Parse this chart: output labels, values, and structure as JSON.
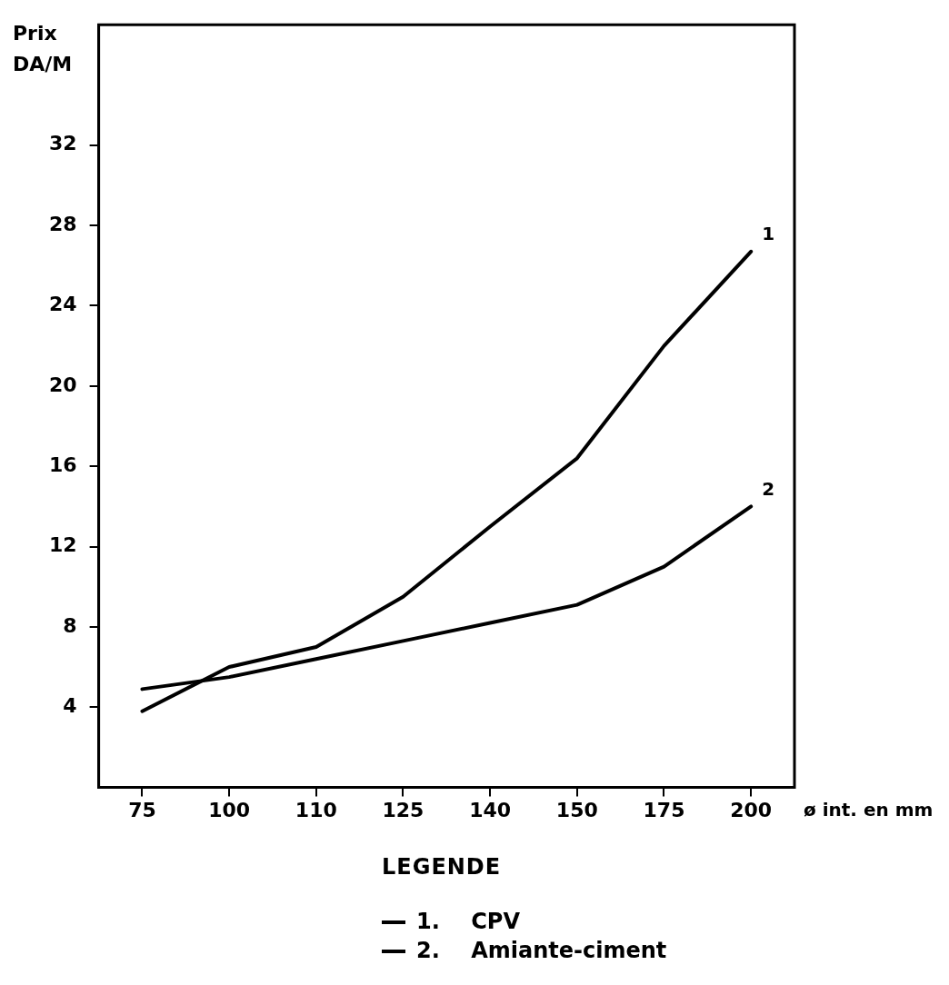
{
  "chart_data": {
    "type": "line",
    "ylabel": "Prix DA/M",
    "xlabel": "ø int. en mm",
    "legend_title": "LEGENDE",
    "legend": "bottom",
    "marker": "none",
    "categories": [
      "75",
      "100",
      "110",
      "125",
      "140",
      "150",
      "175",
      "200"
    ],
    "annotations": [
      "1",
      "2"
    ],
    "ylim": [
      0,
      38
    ],
    "yticks": [
      4,
      8,
      12,
      16,
      20,
      24,
      28,
      32
    ],
    "series": [
      {
        "name": "1. CPV",
        "color": "#000000",
        "values": [
          3.8,
          6,
          7,
          9.5,
          13,
          16.4,
          22,
          26.7
        ]
      },
      {
        "name": "2. Amiante-ciment",
        "color": "#000000",
        "values": [
          4.9,
          5.5,
          6.4,
          7.3,
          8.2,
          9.1,
          11,
          14
        ]
      }
    ]
  }
}
